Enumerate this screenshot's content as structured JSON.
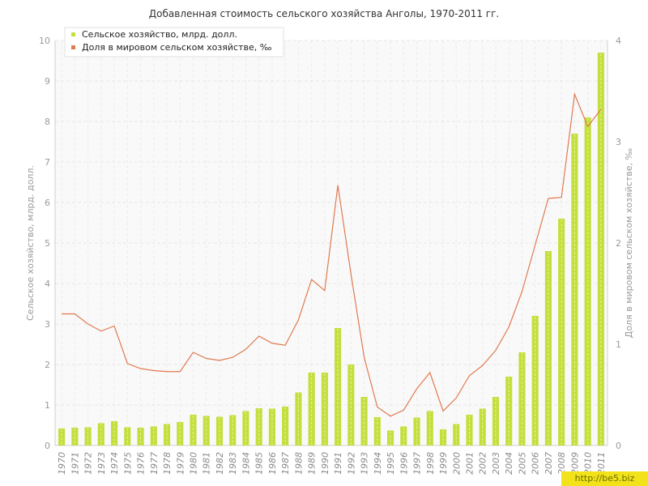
{
  "watermark": "http://be5.biz",
  "chart_data": {
    "type": "bar",
    "title": "Добавленная стоимость сельского хозяйства Анголы, 1970-2011 гг.",
    "ylabel_left": "Сельское хозяйство, млрд. долл.",
    "ylabel_right": "Доля в мировом сельском хозяйстве, ‰",
    "ylim_left": [
      0,
      10
    ],
    "yticks_left": [
      0,
      1,
      2,
      3,
      4,
      5,
      6,
      7,
      8,
      9,
      10
    ],
    "ylim_right": [
      0,
      4
    ],
    "yticks_right": [
      0,
      1,
      2,
      3,
      4
    ],
    "grid": true,
    "legend_position": "top-left",
    "categories": [
      "1970",
      "1971",
      "1972",
      "1973",
      "1974",
      "1975",
      "1976",
      "1977",
      "1978",
      "1979",
      "1980",
      "1981",
      "1982",
      "1983",
      "1984",
      "1985",
      "1986",
      "1987",
      "1988",
      "1989",
      "1990",
      "1991",
      "1992",
      "1993",
      "1994",
      "1995",
      "1996",
      "1997",
      "1998",
      "1999",
      "2000",
      "2001",
      "2002",
      "2003",
      "2004",
      "2005",
      "2006",
      "2007",
      "2008",
      "2009",
      "2010",
      "2011"
    ],
    "series": [
      {
        "name": "Сельское хозяйство, млрд. долл.",
        "type": "bar",
        "axis": "left",
        "color": "#c3df3c",
        "values": [
          0.42,
          0.44,
          0.45,
          0.55,
          0.6,
          0.45,
          0.44,
          0.47,
          0.53,
          0.58,
          0.76,
          0.73,
          0.71,
          0.75,
          0.85,
          0.92,
          0.91,
          0.96,
          1.31,
          1.8,
          1.8,
          2.9,
          2.0,
          1.2,
          0.7,
          0.37,
          0.47,
          0.69,
          0.85,
          0.4,
          0.53,
          0.76,
          0.91,
          1.2,
          1.7,
          2.3,
          3.2,
          4.8,
          5.6,
          7.7,
          8.1,
          9.7
        ]
      },
      {
        "name": "Доля в мировом сельском хозяйстве, ‰",
        "type": "line",
        "axis": "right",
        "color": "#e07a50",
        "values": [
          1.3,
          1.3,
          1.2,
          1.13,
          1.18,
          0.81,
          0.76,
          0.74,
          0.73,
          0.73,
          0.92,
          0.86,
          0.84,
          0.87,
          0.95,
          1.08,
          1.01,
          0.99,
          1.24,
          1.64,
          1.53,
          2.57,
          1.69,
          0.87,
          0.38,
          0.29,
          0.35,
          0.56,
          0.72,
          0.34,
          0.47,
          0.69,
          0.79,
          0.94,
          1.17,
          1.52,
          1.98,
          2.44,
          2.45,
          3.47,
          3.15,
          3.32
        ]
      }
    ]
  }
}
